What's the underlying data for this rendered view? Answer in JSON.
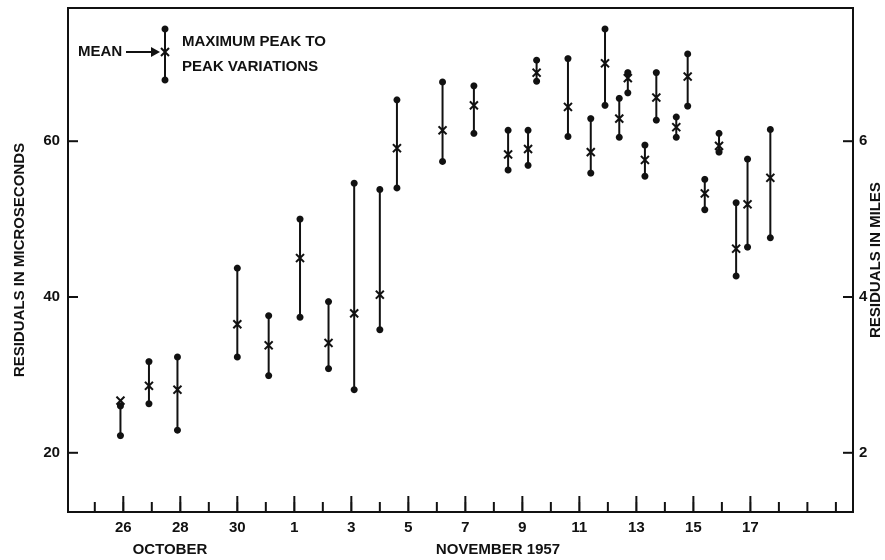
{
  "chart_data": {
    "type": "errorbar",
    "ylabel": "RESIDUALS IN MICROSECONDS",
    "y2label": "RESIDUALS IN MILES",
    "xlabels": [
      "OCTOBER",
      "NOVEMBER 1957"
    ],
    "legend": {
      "mean": "MEAN",
      "range": [
        "MAXIMUM PEAK TO",
        "PEAK VARIATIONS"
      ]
    },
    "color": "#111111",
    "x": [
      25.9,
      26.9,
      27.9,
      30.0,
      31.1,
      32.2,
      33.2,
      34.1,
      35.0,
      35.6,
      37.2,
      38.3,
      39.5,
      40.2,
      40.5,
      41.6,
      42.4,
      42.9,
      43.4,
      43.7,
      44.3,
      44.7,
      45.4,
      45.8,
      46.4,
      46.9,
      47.5,
      47.9,
      48.7
    ],
    "mean": [
      26.7,
      28.6,
      28.1,
      36.5,
      33.8,
      45.0,
      34.1,
      37.9,
      40.3,
      59.1,
      61.4,
      64.6,
      58.3,
      59.0,
      68.8,
      64.4,
      58.6,
      70.0,
      62.9,
      68.1,
      57.6,
      65.6,
      61.8,
      68.3,
      53.3,
      59.4,
      46.2,
      51.9,
      55.3
    ],
    "high": [
      26.0,
      31.7,
      32.3,
      43.7,
      37.6,
      50.0,
      39.4,
      54.6,
      53.8,
      65.3,
      67.6,
      67.1,
      61.4,
      61.4,
      70.4,
      70.6,
      62.9,
      74.4,
      65.5,
      68.8,
      59.5,
      68.8,
      63.1,
      71.2,
      55.1,
      61.0,
      52.1,
      57.7,
      61.5
    ],
    "low": [
      22.2,
      26.3,
      22.9,
      32.3,
      29.9,
      37.4,
      30.8,
      28.1,
      35.8,
      54.0,
      57.4,
      61.0,
      56.3,
      56.9,
      67.7,
      60.6,
      55.9,
      64.6,
      60.5,
      66.2,
      55.5,
      62.7,
      60.5,
      64.5,
      51.2,
      58.6,
      42.7,
      46.4,
      47.6
    ],
    "xlim": [
      24.06,
      51.6
    ],
    "xticks": [
      26,
      28,
      30,
      {
        "value": 32,
        "label": "1"
      },
      {
        "value": 34,
        "label": "3"
      },
      {
        "value": 36,
        "label": "5"
      },
      {
        "value": 38,
        "label": "7"
      },
      {
        "value": 40,
        "label": "9"
      },
      {
        "value": 42,
        "label": "11"
      },
      {
        "value": 44,
        "label": "13"
      },
      {
        "value": 46,
        "label": "15"
      },
      {
        "value": 48,
        "label": "17"
      }
    ],
    "xminor_ticks": [
      25,
      26,
      27,
      28,
      29,
      30,
      31,
      32,
      33,
      34,
      35,
      36,
      37,
      38,
      39,
      40,
      41,
      42,
      43,
      44,
      45,
      46,
      47,
      48,
      49,
      50,
      51
    ],
    "ylim": [
      12.4,
      77.1
    ],
    "yticks": [
      20,
      40,
      60
    ],
    "y2lim": [
      1.24,
      7.71
    ],
    "y2ticks": [
      2,
      4,
      6
    ],
    "grid": false
  }
}
